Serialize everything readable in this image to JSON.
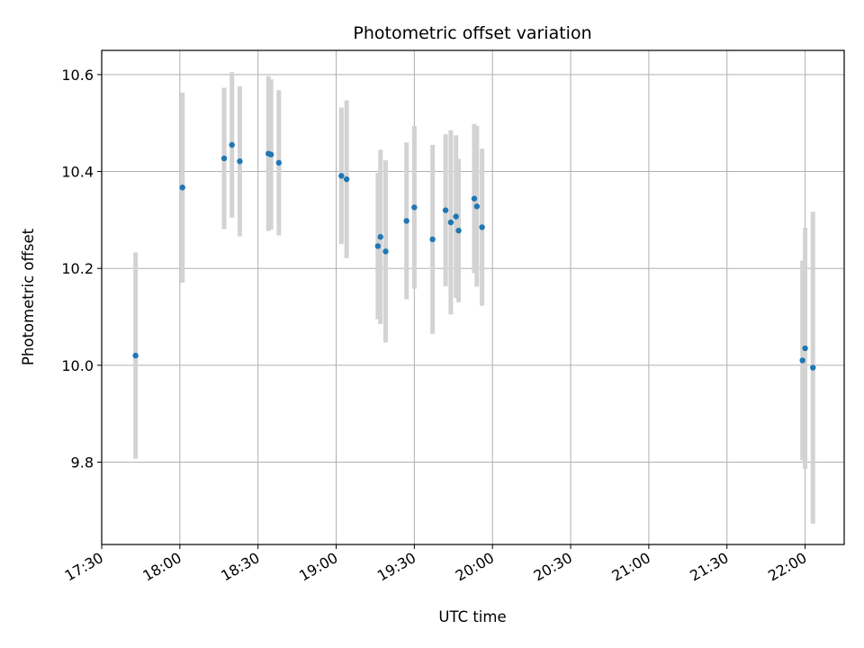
{
  "chart_data": {
    "type": "scatter",
    "title": "Photometric offset variation",
    "xlabel": "UTC time",
    "ylabel": "Photometric offset",
    "x_is_time": true,
    "xlim": [
      "17:30",
      "22:15"
    ],
    "ylim": [
      9.63,
      10.65
    ],
    "x_ticks": [
      "17:30",
      "18:00",
      "18:30",
      "19:00",
      "19:30",
      "20:00",
      "20:30",
      "21:00",
      "21:30",
      "22:00"
    ],
    "y_ticks": [
      "9.8",
      "10.0",
      "10.2",
      "10.4",
      "10.6"
    ],
    "grid": true,
    "legend": "none",
    "colors": {
      "point": "#1f77b4",
      "errorbar": "#d3d3d3",
      "grid": "#b0b0b0"
    },
    "series": [
      {
        "points": [
          {
            "x": "17:43",
            "y": 10.02,
            "yerr": 0.213
          },
          {
            "x": "18:01",
            "y": 10.367,
            "yerr": 0.196
          },
          {
            "x": "18:17",
            "y": 10.427,
            "yerr": 0.146
          },
          {
            "x": "18:20",
            "y": 10.455,
            "yerr": 0.15
          },
          {
            "x": "18:23",
            "y": 10.421,
            "yerr": 0.155
          },
          {
            "x": "18:34",
            "y": 10.437,
            "yerr": 0.16
          },
          {
            "x": "18:35",
            "y": 10.435,
            "yerr": 0.155
          },
          {
            "x": "18:38",
            "y": 10.418,
            "yerr": 0.15
          },
          {
            "x": "19:02",
            "y": 10.391,
            "yerr": 0.141
          },
          {
            "x": "19:04",
            "y": 10.384,
            "yerr": 0.163
          },
          {
            "x": "19:16",
            "y": 10.246,
            "yerr": 0.151
          },
          {
            "x": "19:17",
            "y": 10.265,
            "yerr": 0.18
          },
          {
            "x": "19:19",
            "y": 10.235,
            "yerr": 0.188
          },
          {
            "x": "19:27",
            "y": 10.298,
            "yerr": 0.162
          },
          {
            "x": "19:30",
            "y": 10.326,
            "yerr": 0.168
          },
          {
            "x": "19:37",
            "y": 10.26,
            "yerr": 0.195
          },
          {
            "x": "19:42",
            "y": 10.32,
            "yerr": 0.157
          },
          {
            "x": "19:44",
            "y": 10.295,
            "yerr": 0.19
          },
          {
            "x": "19:46",
            "y": 10.307,
            "yerr": 0.168
          },
          {
            "x": "19:47",
            "y": 10.278,
            "yerr": 0.148
          },
          {
            "x": "19:53",
            "y": 10.344,
            "yerr": 0.154
          },
          {
            "x": "19:54",
            "y": 10.328,
            "yerr": 0.166
          },
          {
            "x": "19:56",
            "y": 10.285,
            "yerr": 0.162
          },
          {
            "x": "21:59",
            "y": 10.01,
            "yerr": 0.206
          },
          {
            "x": "22:00",
            "y": 10.035,
            "yerr": 0.249
          },
          {
            "x": "22:03",
            "y": 9.995,
            "yerr": 0.322
          }
        ]
      }
    ]
  }
}
